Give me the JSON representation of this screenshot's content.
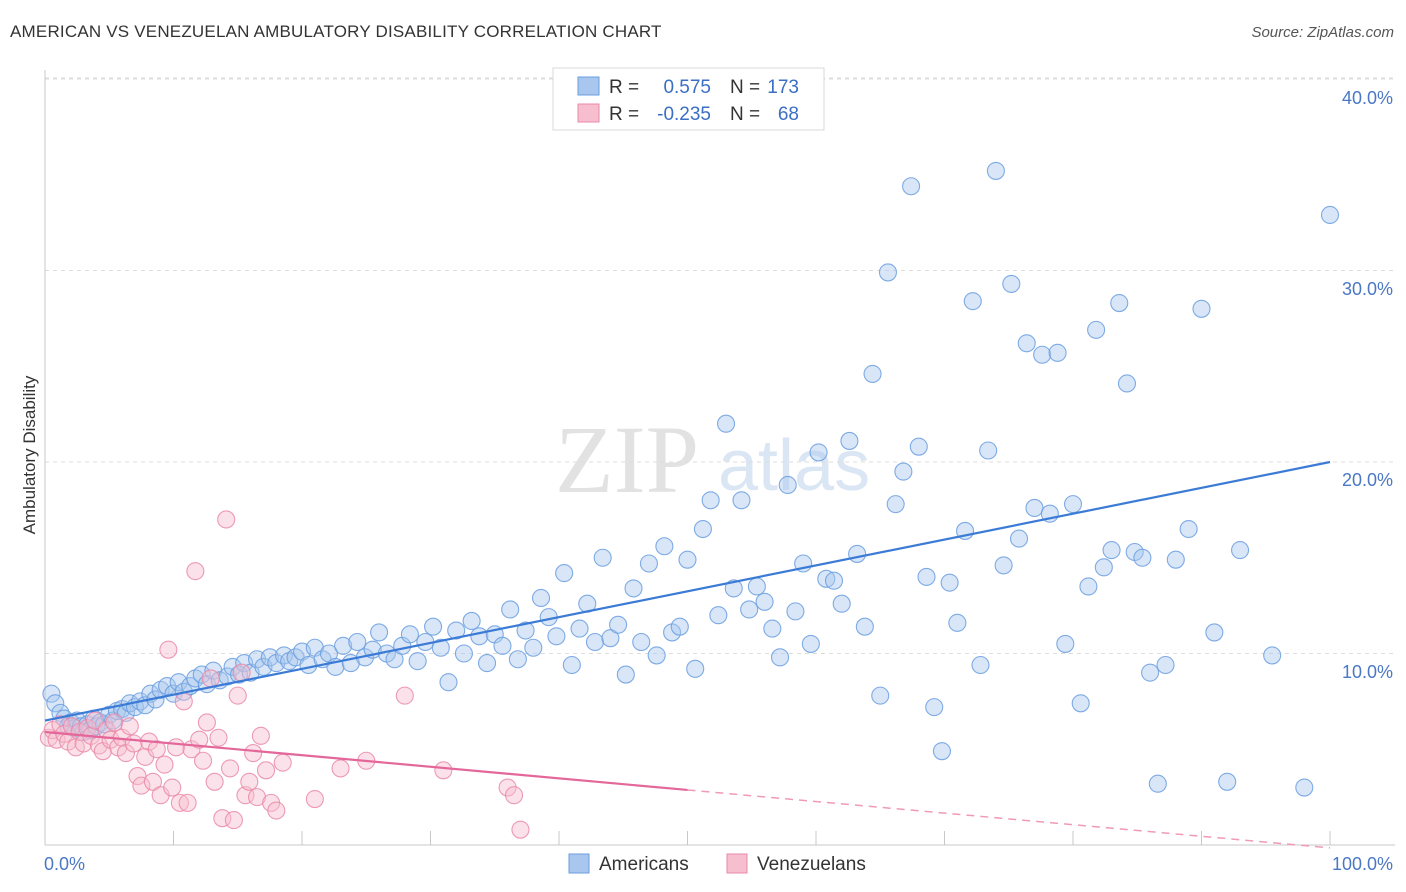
{
  "title": "AMERICAN VS VENEZUELAN AMBULATORY DISABILITY CORRELATION CHART",
  "source": "Source: ZipAtlas.com",
  "watermark": {
    "zip": "ZIP",
    "atlas": "atlas"
  },
  "legend": {
    "rows": [
      {
        "r_label": "R =",
        "r_value": "0.575",
        "n_label": "N =",
        "n_value": "173",
        "color": "#a9c7ee",
        "stroke": "#6a9ee0"
      },
      {
        "r_label": "R =",
        "r_value": "-0.235",
        "n_label": "N =",
        "n_value": "68",
        "color": "#f7bed0",
        "stroke": "#ea8aa8"
      }
    ]
  },
  "bottom_legend": [
    {
      "label": "Americans",
      "color": "#a9c7ee"
    },
    {
      "label": "Venezuelans",
      "color": "#f7bed0"
    }
  ],
  "chart_data": {
    "type": "scatter",
    "xlabel": "",
    "ylabel": "Ambulatory Disability",
    "xlim": [
      0,
      100
    ],
    "ylim": [
      0,
      42
    ],
    "x_tick_labels": [
      "0.0%",
      "100.0%"
    ],
    "y_ticks": [
      10,
      20,
      30,
      40
    ],
    "y_tick_labels": [
      "10.0%",
      "20.0%",
      "30.0%",
      "40.0%"
    ],
    "grid": true,
    "series": [
      {
        "name": "Americans",
        "color": "#6a9ee0",
        "fill": "#a9c7ee",
        "trend": {
          "x0": 0,
          "y0": 6.5,
          "x1": 100,
          "y1": 20.0,
          "solid_to": 100
        },
        "points": [
          [
            0.5,
            7.9
          ],
          [
            0.8,
            7.4
          ],
          [
            1.2,
            6.9
          ],
          [
            1.5,
            6.6
          ],
          [
            1.8,
            6.2
          ],
          [
            2.0,
            6.4
          ],
          [
            2.3,
            6.1
          ],
          [
            2.5,
            6.5
          ],
          [
            2.8,
            6.2
          ],
          [
            3.0,
            5.9
          ],
          [
            3.3,
            6.3
          ],
          [
            3.5,
            6.0
          ],
          [
            3.8,
            6.6
          ],
          [
            4.0,
            6.2
          ],
          [
            4.3,
            6.4
          ],
          [
            4.6,
            6.3
          ],
          [
            5.0,
            6.8
          ],
          [
            5.3,
            6.5
          ],
          [
            5.6,
            7.0
          ],
          [
            6.0,
            7.1
          ],
          [
            6.3,
            6.9
          ],
          [
            6.6,
            7.4
          ],
          [
            7.0,
            7.2
          ],
          [
            7.4,
            7.5
          ],
          [
            7.8,
            7.3
          ],
          [
            8.2,
            7.9
          ],
          [
            8.6,
            7.6
          ],
          [
            9.0,
            8.1
          ],
          [
            9.5,
            8.3
          ],
          [
            10.0,
            7.9
          ],
          [
            10.4,
            8.5
          ],
          [
            10.8,
            8.0
          ],
          [
            11.3,
            8.3
          ],
          [
            11.7,
            8.7
          ],
          [
            12.2,
            8.9
          ],
          [
            12.6,
            8.4
          ],
          [
            13.1,
            9.1
          ],
          [
            13.6,
            8.6
          ],
          [
            14.2,
            8.8
          ],
          [
            14.6,
            9.3
          ],
          [
            15.1,
            8.9
          ],
          [
            15.5,
            9.5
          ],
          [
            16.0,
            9.0
          ],
          [
            16.5,
            9.7
          ],
          [
            17.0,
            9.3
          ],
          [
            17.5,
            9.8
          ],
          [
            18.0,
            9.5
          ],
          [
            18.6,
            9.9
          ],
          [
            19.0,
            9.6
          ],
          [
            19.5,
            9.8
          ],
          [
            20.0,
            10.1
          ],
          [
            20.5,
            9.4
          ],
          [
            21.0,
            10.3
          ],
          [
            21.6,
            9.7
          ],
          [
            22.1,
            10.0
          ],
          [
            22.6,
            9.3
          ],
          [
            23.2,
            10.4
          ],
          [
            23.8,
            9.5
          ],
          [
            24.3,
            10.6
          ],
          [
            24.9,
            9.8
          ],
          [
            25.5,
            10.2
          ],
          [
            26.0,
            11.1
          ],
          [
            26.6,
            10.0
          ],
          [
            27.2,
            9.7
          ],
          [
            27.8,
            10.4
          ],
          [
            28.4,
            11.0
          ],
          [
            29.0,
            9.6
          ],
          [
            29.6,
            10.6
          ],
          [
            30.2,
            11.4
          ],
          [
            30.8,
            10.3
          ],
          [
            31.4,
            8.5
          ],
          [
            32.0,
            11.2
          ],
          [
            32.6,
            10.0
          ],
          [
            33.2,
            11.7
          ],
          [
            33.8,
            10.9
          ],
          [
            34.4,
            9.5
          ],
          [
            35.0,
            11.0
          ],
          [
            35.6,
            10.4
          ],
          [
            36.2,
            12.3
          ],
          [
            36.8,
            9.7
          ],
          [
            37.4,
            11.2
          ],
          [
            38.0,
            10.3
          ],
          [
            38.6,
            12.9
          ],
          [
            39.2,
            11.9
          ],
          [
            39.8,
            10.9
          ],
          [
            40.4,
            14.2
          ],
          [
            41.0,
            9.4
          ],
          [
            41.6,
            11.3
          ],
          [
            42.2,
            12.6
          ],
          [
            42.8,
            10.6
          ],
          [
            43.4,
            15.0
          ],
          [
            44.0,
            10.8
          ],
          [
            44.6,
            11.5
          ],
          [
            45.2,
            8.9
          ],
          [
            45.8,
            13.4
          ],
          [
            46.4,
            10.6
          ],
          [
            47.0,
            14.7
          ],
          [
            47.6,
            9.9
          ],
          [
            48.2,
            15.6
          ],
          [
            48.8,
            11.1
          ],
          [
            49.4,
            11.4
          ],
          [
            50.0,
            14.9
          ],
          [
            50.6,
            9.2
          ],
          [
            51.2,
            16.5
          ],
          [
            51.8,
            18.0
          ],
          [
            52.4,
            12.0
          ],
          [
            53.0,
            22.0
          ],
          [
            53.6,
            13.4
          ],
          [
            54.2,
            18.0
          ],
          [
            54.8,
            12.3
          ],
          [
            55.4,
            13.5
          ],
          [
            56.0,
            12.7
          ],
          [
            56.6,
            11.3
          ],
          [
            57.2,
            9.8
          ],
          [
            57.8,
            18.8
          ],
          [
            58.4,
            12.2
          ],
          [
            59.0,
            14.7
          ],
          [
            59.6,
            10.5
          ],
          [
            60.2,
            20.5
          ],
          [
            60.8,
            13.9
          ],
          [
            61.4,
            13.8
          ],
          [
            62.0,
            12.6
          ],
          [
            62.6,
            21.1
          ],
          [
            63.2,
            15.2
          ],
          [
            63.8,
            11.4
          ],
          [
            64.4,
            24.6
          ],
          [
            65.0,
            7.8
          ],
          [
            65.6,
            29.9
          ],
          [
            66.2,
            17.8
          ],
          [
            66.8,
            19.5
          ],
          [
            67.4,
            34.4
          ],
          [
            68.0,
            20.8
          ],
          [
            68.6,
            14.0
          ],
          [
            69.2,
            7.2
          ],
          [
            69.8,
            4.9
          ],
          [
            70.4,
            13.7
          ],
          [
            71.0,
            11.6
          ],
          [
            71.6,
            16.4
          ],
          [
            72.2,
            28.4
          ],
          [
            72.8,
            9.4
          ],
          [
            73.4,
            20.6
          ],
          [
            74.0,
            35.2
          ],
          [
            74.6,
            14.6
          ],
          [
            75.2,
            29.3
          ],
          [
            75.8,
            16.0
          ],
          [
            76.4,
            26.2
          ],
          [
            77.0,
            17.6
          ],
          [
            77.6,
            25.6
          ],
          [
            78.2,
            17.3
          ],
          [
            78.8,
            25.7
          ],
          [
            79.4,
            10.5
          ],
          [
            80.0,
            17.8
          ],
          [
            80.6,
            7.4
          ],
          [
            81.2,
            13.5
          ],
          [
            81.8,
            26.9
          ],
          [
            82.4,
            14.5
          ],
          [
            83.0,
            15.4
          ],
          [
            83.6,
            28.3
          ],
          [
            84.2,
            24.1
          ],
          [
            84.8,
            15.3
          ],
          [
            85.4,
            15.0
          ],
          [
            86.0,
            9.0
          ],
          [
            86.6,
            3.2
          ],
          [
            87.2,
            9.4
          ],
          [
            88.0,
            14.9
          ],
          [
            89.0,
            16.5
          ],
          [
            90.0,
            28.0
          ],
          [
            91.0,
            11.1
          ],
          [
            92.0,
            3.3
          ],
          [
            93.0,
            15.4
          ],
          [
            95.5,
            9.9
          ],
          [
            98.0,
            3.0
          ],
          [
            100.0,
            32.9
          ]
        ]
      },
      {
        "name": "Venezuelans",
        "color": "#ea8aa8",
        "fill": "#f7bed0",
        "trend": {
          "x0": 0,
          "y0": 5.9,
          "x1": 100,
          "y1": -0.15,
          "solid_to": 50
        },
        "points": [
          [
            0.3,
            5.6
          ],
          [
            0.6,
            6.0
          ],
          [
            0.9,
            5.5
          ],
          [
            1.2,
            6.3
          ],
          [
            1.5,
            5.8
          ],
          [
            1.8,
            5.4
          ],
          [
            2.1,
            6.2
          ],
          [
            2.4,
            5.1
          ],
          [
            2.7,
            5.9
          ],
          [
            3.0,
            5.3
          ],
          [
            3.3,
            6.1
          ],
          [
            3.6,
            5.7
          ],
          [
            3.9,
            6.5
          ],
          [
            4.2,
            5.2
          ],
          [
            4.5,
            4.9
          ],
          [
            4.8,
            6.0
          ],
          [
            5.1,
            5.5
          ],
          [
            5.4,
            6.4
          ],
          [
            5.7,
            5.1
          ],
          [
            6.0,
            5.6
          ],
          [
            6.3,
            4.8
          ],
          [
            6.6,
            6.2
          ],
          [
            6.9,
            5.3
          ],
          [
            7.2,
            3.6
          ],
          [
            7.5,
            3.1
          ],
          [
            7.8,
            4.6
          ],
          [
            8.1,
            5.4
          ],
          [
            8.4,
            3.3
          ],
          [
            8.7,
            5.0
          ],
          [
            9.0,
            2.6
          ],
          [
            9.3,
            4.2
          ],
          [
            9.6,
            10.2
          ],
          [
            9.9,
            3.0
          ],
          [
            10.2,
            5.1
          ],
          [
            10.5,
            2.2
          ],
          [
            10.8,
            7.5
          ],
          [
            11.1,
            2.2
          ],
          [
            11.4,
            5.0
          ],
          [
            11.7,
            14.3
          ],
          [
            12.0,
            5.5
          ],
          [
            12.3,
            4.4
          ],
          [
            12.6,
            6.4
          ],
          [
            12.9,
            8.7
          ],
          [
            13.2,
            3.3
          ],
          [
            13.5,
            5.6
          ],
          [
            13.8,
            1.4
          ],
          [
            14.1,
            17.0
          ],
          [
            14.4,
            4.0
          ],
          [
            14.7,
            1.3
          ],
          [
            15.0,
            7.8
          ],
          [
            15.3,
            9.0
          ],
          [
            15.6,
            2.6
          ],
          [
            15.9,
            3.3
          ],
          [
            16.2,
            4.8
          ],
          [
            16.5,
            2.5
          ],
          [
            16.8,
            5.7
          ],
          [
            17.2,
            3.9
          ],
          [
            17.6,
            2.2
          ],
          [
            18.0,
            1.8
          ],
          [
            18.5,
            4.3
          ],
          [
            21.0,
            2.4
          ],
          [
            23.0,
            4.0
          ],
          [
            25.0,
            4.4
          ],
          [
            28.0,
            7.8
          ],
          [
            31.0,
            3.9
          ],
          [
            36.0,
            3.0
          ],
          [
            36.5,
            2.6
          ],
          [
            37.0,
            0.8
          ]
        ]
      }
    ]
  }
}
